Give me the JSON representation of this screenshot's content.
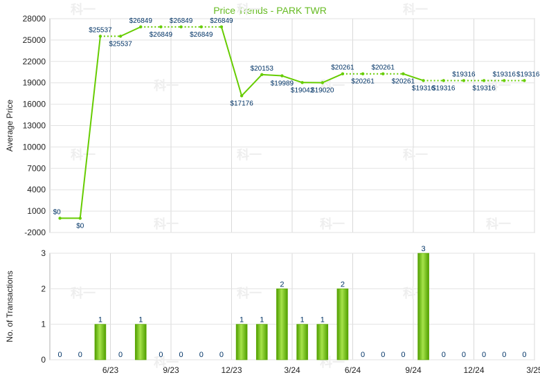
{
  "chart_data": [
    {
      "type": "line",
      "title": "Price Trends - PARK TWR",
      "xlabel": "",
      "ylabel": "Average Price",
      "ylim": [
        -2000,
        28000
      ],
      "yticks": [
        -2000,
        1000,
        4000,
        7000,
        10000,
        13000,
        16000,
        19000,
        22000,
        25000,
        28000
      ],
      "xticks": [
        "6/23",
        "9/23",
        "12/23",
        "3/24",
        "6/24",
        "9/24",
        "12/24",
        "3/25"
      ],
      "xtick_month_index": [
        3,
        6,
        9,
        12,
        15,
        18,
        21,
        24
      ],
      "months": [
        "2023-04",
        "2023-05",
        "2023-06",
        "2023-07",
        "2023-08",
        "2023-09",
        "2023-10",
        "2023-11",
        "2023-12",
        "2024-01",
        "2024-02",
        "2024-03",
        "2024-04",
        "2024-05",
        "2024-06",
        "2024-07",
        "2024-08",
        "2024-09",
        "2024-10",
        "2024-11",
        "2024-12",
        "2025-01",
        "2025-02",
        "2025-03"
      ],
      "values": [
        0,
        0,
        25537,
        25537,
        26849,
        26849,
        26849,
        26849,
        26849,
        17176,
        20153,
        19989,
        19042,
        19020,
        20261,
        20261,
        20261,
        20261,
        19316,
        19316,
        19316,
        19316,
        19316,
        19316
      ],
      "data_labels": [
        "$0",
        "$0",
        "$25537",
        "$25537",
        "$26849",
        "$26849",
        "$26849",
        "$26849",
        "$26849",
        "$17176",
        "$20153",
        "$19989",
        "$19042",
        "$19020",
        "$20261",
        "$20261",
        "$20261",
        "$20261",
        "$19316",
        "$19316",
        "$19316",
        "$19316",
        "$19316",
        "$19316"
      ],
      "has_transaction": [
        true,
        true,
        true,
        false,
        true,
        false,
        false,
        false,
        false,
        true,
        true,
        true,
        true,
        true,
        true,
        false,
        false,
        false,
        true,
        false,
        false,
        false,
        false,
        false
      ],
      "line_color": "#66cc00",
      "title_color": "#66bb22",
      "grid": true
    },
    {
      "type": "bar",
      "title": "",
      "xlabel": "",
      "ylabel": "No. of Transactions",
      "ylim": [
        0,
        3
      ],
      "yticks": [
        0,
        1,
        2,
        3
      ],
      "xticks": [
        "6/23",
        "9/23",
        "12/23",
        "3/24",
        "6/24",
        "9/24",
        "12/24",
        "3/25"
      ],
      "values": [
        0,
        0,
        1,
        0,
        1,
        0,
        0,
        0,
        0,
        1,
        1,
        2,
        1,
        1,
        2,
        0,
        0,
        0,
        3,
        0,
        0,
        0,
        0,
        0
      ],
      "bar_color": "#66cc00",
      "label_color": "#003366",
      "grid": true
    }
  ],
  "watermark": "科一"
}
